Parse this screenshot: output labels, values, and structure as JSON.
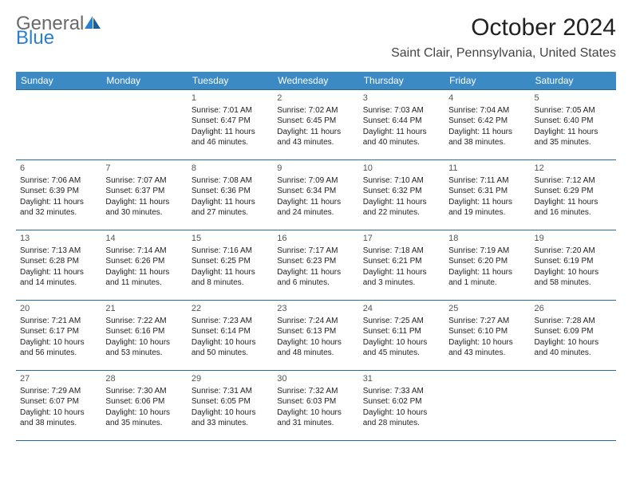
{
  "logo": {
    "text_general": "General",
    "text_blue": "Blue",
    "accent_color": "#2a7fcf"
  },
  "title": "October 2024",
  "location": "Saint Clair, Pennsylvania, United States",
  "day_headers": [
    "Sunday",
    "Monday",
    "Tuesday",
    "Wednesday",
    "Thursday",
    "Friday",
    "Saturday"
  ],
  "header_bg": "#3b8ac4",
  "header_fg": "#ffffff",
  "border_color": "#2a6a9a",
  "weeks": [
    [
      null,
      null,
      {
        "n": "1",
        "sr": "7:01 AM",
        "ss": "6:47 PM",
        "dl": "11 hours and 46 minutes."
      },
      {
        "n": "2",
        "sr": "7:02 AM",
        "ss": "6:45 PM",
        "dl": "11 hours and 43 minutes."
      },
      {
        "n": "3",
        "sr": "7:03 AM",
        "ss": "6:44 PM",
        "dl": "11 hours and 40 minutes."
      },
      {
        "n": "4",
        "sr": "7:04 AM",
        "ss": "6:42 PM",
        "dl": "11 hours and 38 minutes."
      },
      {
        "n": "5",
        "sr": "7:05 AM",
        "ss": "6:40 PM",
        "dl": "11 hours and 35 minutes."
      }
    ],
    [
      {
        "n": "6",
        "sr": "7:06 AM",
        "ss": "6:39 PM",
        "dl": "11 hours and 32 minutes."
      },
      {
        "n": "7",
        "sr": "7:07 AM",
        "ss": "6:37 PM",
        "dl": "11 hours and 30 minutes."
      },
      {
        "n": "8",
        "sr": "7:08 AM",
        "ss": "6:36 PM",
        "dl": "11 hours and 27 minutes."
      },
      {
        "n": "9",
        "sr": "7:09 AM",
        "ss": "6:34 PM",
        "dl": "11 hours and 24 minutes."
      },
      {
        "n": "10",
        "sr": "7:10 AM",
        "ss": "6:32 PM",
        "dl": "11 hours and 22 minutes."
      },
      {
        "n": "11",
        "sr": "7:11 AM",
        "ss": "6:31 PM",
        "dl": "11 hours and 19 minutes."
      },
      {
        "n": "12",
        "sr": "7:12 AM",
        "ss": "6:29 PM",
        "dl": "11 hours and 16 minutes."
      }
    ],
    [
      {
        "n": "13",
        "sr": "7:13 AM",
        "ss": "6:28 PM",
        "dl": "11 hours and 14 minutes."
      },
      {
        "n": "14",
        "sr": "7:14 AM",
        "ss": "6:26 PM",
        "dl": "11 hours and 11 minutes."
      },
      {
        "n": "15",
        "sr": "7:16 AM",
        "ss": "6:25 PM",
        "dl": "11 hours and 8 minutes."
      },
      {
        "n": "16",
        "sr": "7:17 AM",
        "ss": "6:23 PM",
        "dl": "11 hours and 6 minutes."
      },
      {
        "n": "17",
        "sr": "7:18 AM",
        "ss": "6:21 PM",
        "dl": "11 hours and 3 minutes."
      },
      {
        "n": "18",
        "sr": "7:19 AM",
        "ss": "6:20 PM",
        "dl": "11 hours and 1 minute."
      },
      {
        "n": "19",
        "sr": "7:20 AM",
        "ss": "6:19 PM",
        "dl": "10 hours and 58 minutes."
      }
    ],
    [
      {
        "n": "20",
        "sr": "7:21 AM",
        "ss": "6:17 PM",
        "dl": "10 hours and 56 minutes."
      },
      {
        "n": "21",
        "sr": "7:22 AM",
        "ss": "6:16 PM",
        "dl": "10 hours and 53 minutes."
      },
      {
        "n": "22",
        "sr": "7:23 AM",
        "ss": "6:14 PM",
        "dl": "10 hours and 50 minutes."
      },
      {
        "n": "23",
        "sr": "7:24 AM",
        "ss": "6:13 PM",
        "dl": "10 hours and 48 minutes."
      },
      {
        "n": "24",
        "sr": "7:25 AM",
        "ss": "6:11 PM",
        "dl": "10 hours and 45 minutes."
      },
      {
        "n": "25",
        "sr": "7:27 AM",
        "ss": "6:10 PM",
        "dl": "10 hours and 43 minutes."
      },
      {
        "n": "26",
        "sr": "7:28 AM",
        "ss": "6:09 PM",
        "dl": "10 hours and 40 minutes."
      }
    ],
    [
      {
        "n": "27",
        "sr": "7:29 AM",
        "ss": "6:07 PM",
        "dl": "10 hours and 38 minutes."
      },
      {
        "n": "28",
        "sr": "7:30 AM",
        "ss": "6:06 PM",
        "dl": "10 hours and 35 minutes."
      },
      {
        "n": "29",
        "sr": "7:31 AM",
        "ss": "6:05 PM",
        "dl": "10 hours and 33 minutes."
      },
      {
        "n": "30",
        "sr": "7:32 AM",
        "ss": "6:03 PM",
        "dl": "10 hours and 31 minutes."
      },
      {
        "n": "31",
        "sr": "7:33 AM",
        "ss": "6:02 PM",
        "dl": "10 hours and 28 minutes."
      },
      null,
      null
    ]
  ],
  "labels": {
    "sunrise": "Sunrise: ",
    "sunset": "Sunset: ",
    "daylight": "Daylight: "
  }
}
